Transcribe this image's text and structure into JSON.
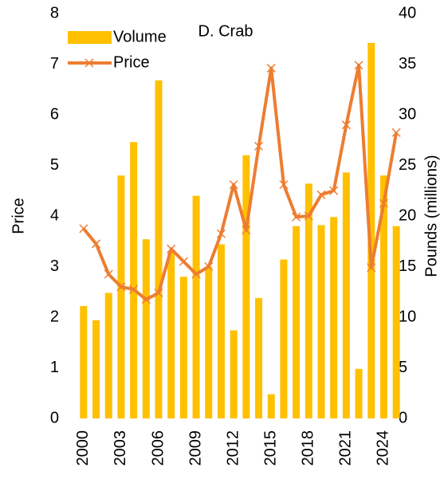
{
  "chart_data": {
    "type": "bar",
    "title": "D. Crab",
    "categories": [
      "2000",
      null,
      null,
      "2003",
      null,
      null,
      "2006",
      null,
      null,
      "2009",
      null,
      null,
      "2012",
      null,
      null,
      "2015",
      null,
      null,
      "2018",
      null,
      null,
      "2021",
      null,
      null,
      "2024",
      null
    ],
    "series": [
      {
        "name": "Volume",
        "type": "bar",
        "axis": "y2",
        "color": "#FFC000",
        "values": [
          11.1,
          9.7,
          12.4,
          24,
          27.3,
          17.7,
          33.4,
          16.5,
          14,
          22,
          15,
          17.2,
          8.7,
          26,
          11.9,
          2.4,
          15.7,
          19,
          23.2,
          19.1,
          19.9,
          24.3,
          4.9,
          37.1,
          24,
          19
        ]
      },
      {
        "name": "Price",
        "type": "line",
        "color": "#ED7D31",
        "values": [
          3.75,
          3.45,
          2.85,
          2.6,
          2.55,
          2.35,
          2.48,
          3.35,
          3.1,
          2.85,
          3.0,
          3.65,
          4.62,
          3.72,
          5.38,
          6.92,
          4.62,
          3.98,
          4.0,
          4.42,
          4.5,
          5.8,
          6.98,
          2.98,
          4.25,
          5.65
        ]
      }
    ],
    "ylabel": "Price",
    "y2label": "Pounds (millions)",
    "ylim": [
      0,
      8
    ],
    "yticks": [
      0,
      1,
      2,
      3,
      4,
      5,
      6,
      7,
      8
    ],
    "y2lim": [
      0,
      40
    ],
    "y2ticks": [
      0,
      5,
      10,
      15,
      20,
      25,
      30,
      35,
      40
    ],
    "legend": "upper left"
  }
}
